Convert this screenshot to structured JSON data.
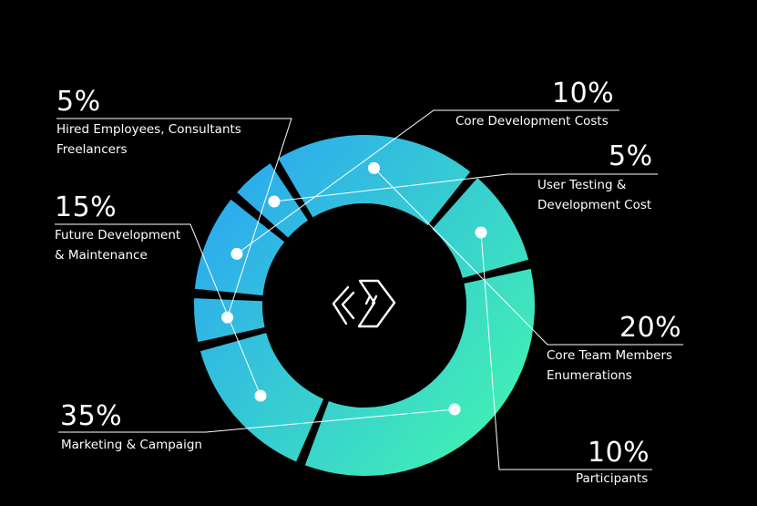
{
  "chart_data": {
    "type": "pie",
    "variant": "donut",
    "slices": [
      {
        "value": 10,
        "label": "10%",
        "name_lines": [
          "Core Development Costs"
        ]
      },
      {
        "value": 5,
        "label": "5%",
        "name_lines": [
          "User Testing &",
          "Development Cost"
        ]
      },
      {
        "value": 20,
        "label": "20%",
        "name_lines": [
          "Core Team Members",
          "Enumerations"
        ]
      },
      {
        "value": 10,
        "label": "10%",
        "name_lines": [
          "Participants"
        ]
      },
      {
        "value": 35,
        "label": "35%",
        "name_lines": [
          "Marketing & Campaign"
        ]
      },
      {
        "value": 15,
        "label": "15%",
        "name_lines": [
          "Future Development",
          "& Maintenance"
        ]
      },
      {
        "value": 5,
        "label": "5%",
        "name_lines": [
          "Hired Employees, Consultants",
          "Freelancers"
        ]
      }
    ],
    "gradient": {
      "from": "#2aa4f4",
      "to": "#43f4b0"
    },
    "center_icon": "chevron-logo-icon"
  },
  "colors": {
    "background": "#000000",
    "text": "#ffffff",
    "leader": "#ffffff"
  }
}
